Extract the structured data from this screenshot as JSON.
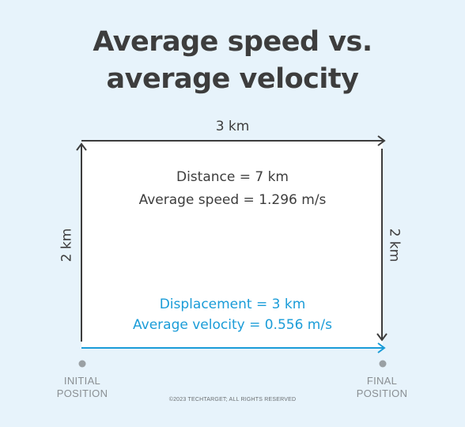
{
  "title": {
    "line1": "Average speed vs.",
    "line2": "average velocity"
  },
  "labels": {
    "top": "3 km",
    "left": "2 km",
    "right": "2 km"
  },
  "distance": {
    "distance_text": "Distance = 7 km",
    "speed_text": "Average speed = 1.296 m/s"
  },
  "displacement": {
    "displacement_text": "Displacement = 3 km",
    "velocity_text": "Average velocity = 0.556 m/s"
  },
  "positions": {
    "initial_line1": "INITIAL",
    "initial_line2": "POSITION",
    "final_line1": "FINAL",
    "final_line2": "POSITION"
  },
  "copyright": "©2023 TECHTARGET; ALL RIGHTS RESERVED",
  "colors": {
    "background": "#e7f3fb",
    "text": "#3d3d3d",
    "displacement": "#1a9cd8",
    "muted": "#8a8f93"
  }
}
